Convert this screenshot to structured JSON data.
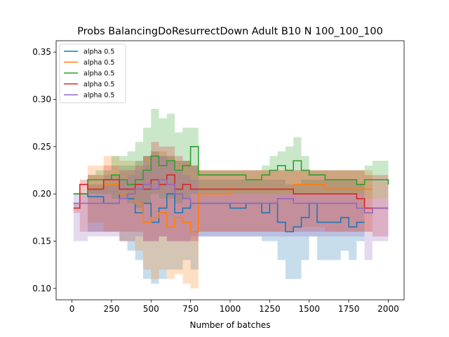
{
  "chart_data": {
    "type": "line",
    "title": "Probs BalancingDoResurrectDown Adult B10 N 100_100_100",
    "xlabel": "Number of batches",
    "ylabel": "",
    "xlim": [
      -100,
      2100
    ],
    "ylim": [
      0.088,
      0.362
    ],
    "x_ticks": [
      0,
      250,
      500,
      750,
      1000,
      1250,
      1500,
      1750,
      2000
    ],
    "x_tick_labels": [
      "0",
      "250",
      "500",
      "750",
      "1000",
      "1250",
      "1500",
      "1750",
      "2000"
    ],
    "y_ticks": [
      0.1,
      0.15,
      0.2,
      0.25,
      0.3,
      0.35
    ],
    "y_tick_labels": [
      "0.10",
      "0.15",
      "0.20",
      "0.25",
      "0.30",
      "0.35"
    ],
    "grid": false,
    "legend_placement": "top-left",
    "series": [
      {
        "name": "alpha 0.5",
        "color": "#1f77b4",
        "x": [
          10,
          100,
          200,
          300,
          350,
          400,
          450,
          500,
          550,
          600,
          650,
          700,
          750,
          800,
          1000,
          1100,
          1200,
          1250,
          1300,
          1350,
          1400,
          1450,
          1500,
          1550,
          1600,
          1700,
          1750,
          1800,
          1850
        ],
        "y": [
          0.2,
          0.197,
          0.19,
          0.2,
          0.195,
          0.18,
          0.19,
          0.17,
          0.185,
          0.2,
          0.18,
          0.185,
          0.19,
          0.19,
          0.185,
          0.19,
          0.18,
          0.19,
          0.17,
          0.16,
          0.165,
          0.175,
          0.19,
          0.17,
          0.17,
          0.175,
          0.165,
          0.17,
          0.17
        ],
        "band_lower": [
          0.2,
          0.16,
          0.16,
          0.15,
          0.14,
          0.13,
          0.11,
          0.105,
          0.11,
          0.12,
          0.12,
          0.13,
          0.12,
          0.155,
          0.155,
          0.155,
          0.15,
          0.15,
          0.13,
          0.11,
          0.11,
          0.13,
          0.155,
          0.13,
          0.13,
          0.14,
          0.13,
          0.15,
          0.15
        ],
        "band_upper": [
          0.2,
          0.21,
          0.22,
          0.23,
          0.23,
          0.235,
          0.24,
          0.245,
          0.24,
          0.24,
          0.235,
          0.235,
          0.23,
          0.215,
          0.215,
          0.215,
          0.215,
          0.215,
          0.215,
          0.21,
          0.21,
          0.215,
          0.215,
          0.215,
          0.215,
          0.215,
          0.215,
          0.21,
          0.21
        ]
      },
      {
        "name": "alpha 0.5",
        "color": "#ff7f0e",
        "x": [
          10,
          100,
          200,
          300,
          400,
          450,
          500,
          550,
          600,
          650,
          700,
          750,
          800,
          1000,
          1200,
          1400,
          1600,
          1800,
          1900
        ],
        "y": [
          0.2,
          0.205,
          0.21,
          0.2,
          0.19,
          0.17,
          0.175,
          0.18,
          0.165,
          0.175,
          0.17,
          0.16,
          0.2,
          0.205,
          0.205,
          0.21,
          0.205,
          0.205,
          0.205
        ],
        "band_lower": [
          0.2,
          0.17,
          0.16,
          0.15,
          0.14,
          0.12,
          0.11,
          0.12,
          0.11,
          0.115,
          0.105,
          0.1,
          0.16,
          0.16,
          0.16,
          0.165,
          0.16,
          0.16,
          0.16
        ],
        "band_upper": [
          0.2,
          0.23,
          0.24,
          0.235,
          0.235,
          0.24,
          0.245,
          0.245,
          0.24,
          0.235,
          0.235,
          0.23,
          0.225,
          0.225,
          0.225,
          0.225,
          0.225,
          0.225,
          0.225
        ]
      },
      {
        "name": "alpha 0.5",
        "color": "#2ca02c",
        "x": [
          10,
          100,
          150,
          250,
          300,
          350,
          400,
          450,
          500,
          550,
          600,
          650,
          700,
          750,
          800,
          900,
          1000,
          1100,
          1200,
          1250,
          1300,
          1350,
          1400,
          1450,
          1500,
          1600,
          1700,
          1800,
          1850,
          1900,
          2000
        ],
        "y": [
          0.2,
          0.215,
          0.215,
          0.22,
          0.215,
          0.21,
          0.215,
          0.225,
          0.24,
          0.23,
          0.235,
          0.225,
          0.23,
          0.25,
          0.22,
          0.22,
          0.22,
          0.215,
          0.22,
          0.225,
          0.23,
          0.225,
          0.235,
          0.225,
          0.22,
          0.215,
          0.215,
          0.21,
          0.215,
          0.215,
          0.21
        ],
        "band_lower": [
          0.2,
          0.2,
          0.2,
          0.195,
          0.195,
          0.19,
          0.185,
          0.19,
          0.2,
          0.195,
          0.195,
          0.19,
          0.195,
          0.2,
          0.2,
          0.2,
          0.2,
          0.2,
          0.2,
          0.2,
          0.2,
          0.2,
          0.2,
          0.2,
          0.2,
          0.2,
          0.2,
          0.2,
          0.195,
          0.195,
          0.2
        ],
        "band_upper": [
          0.2,
          0.22,
          0.225,
          0.24,
          0.24,
          0.245,
          0.255,
          0.27,
          0.29,
          0.28,
          0.285,
          0.265,
          0.27,
          0.27,
          0.225,
          0.225,
          0.225,
          0.225,
          0.23,
          0.24,
          0.245,
          0.25,
          0.26,
          0.24,
          0.225,
          0.225,
          0.225,
          0.225,
          0.23,
          0.235,
          0.22
        ]
      },
      {
        "name": "alpha 0.5",
        "color": "#d62728",
        "x": [
          10,
          50,
          100,
          200,
          300,
          400,
          450,
          500,
          550,
          600,
          650,
          700,
          750,
          800,
          1000,
          1200,
          1400,
          1600,
          1800,
          1850,
          1900,
          2000
        ],
        "y": [
          0.185,
          0.21,
          0.205,
          0.215,
          0.205,
          0.21,
          0.205,
          0.215,
          0.21,
          0.22,
          0.205,
          0.21,
          0.205,
          0.205,
          0.205,
          0.205,
          0.2,
          0.2,
          0.195,
          0.185,
          0.185,
          0.185
        ],
        "band_lower": [
          0.18,
          0.16,
          0.16,
          0.16,
          0.16,
          0.16,
          0.15,
          0.15,
          0.155,
          0.15,
          0.15,
          0.15,
          0.15,
          0.16,
          0.16,
          0.16,
          0.16,
          0.16,
          0.16,
          0.16,
          0.155,
          0.155
        ],
        "band_upper": [
          0.19,
          0.215,
          0.22,
          0.23,
          0.225,
          0.23,
          0.24,
          0.255,
          0.25,
          0.25,
          0.24,
          0.235,
          0.23,
          0.225,
          0.225,
          0.225,
          0.225,
          0.225,
          0.225,
          0.22,
          0.22,
          0.215
        ]
      },
      {
        "name": "alpha 0.5",
        "color": "#9467bd",
        "x": [
          10,
          100,
          200,
          300,
          350,
          400,
          450,
          500,
          550,
          600,
          650,
          700,
          750,
          800,
          1000,
          1200,
          1300,
          1400,
          1500,
          1600,
          1700,
          1800,
          1850,
          1900,
          2000
        ],
        "y": [
          0.19,
          0.19,
          0.19,
          0.195,
          0.2,
          0.205,
          0.21,
          0.205,
          0.215,
          0.21,
          0.2,
          0.195,
          0.19,
          0.19,
          0.19,
          0.19,
          0.195,
          0.19,
          0.19,
          0.19,
          0.19,
          0.185,
          0.18,
          0.185,
          0.185
        ],
        "band_lower": [
          0.15,
          0.155,
          0.155,
          0.15,
          0.15,
          0.155,
          0.15,
          0.15,
          0.155,
          0.15,
          0.15,
          0.15,
          0.155,
          0.155,
          0.155,
          0.155,
          0.155,
          0.155,
          0.155,
          0.155,
          0.155,
          0.155,
          0.13,
          0.15,
          0.15
        ],
        "band_upper": [
          0.2,
          0.205,
          0.21,
          0.215,
          0.22,
          0.225,
          0.23,
          0.24,
          0.24,
          0.235,
          0.225,
          0.22,
          0.215,
          0.2,
          0.2,
          0.2,
          0.2,
          0.2,
          0.2,
          0.2,
          0.2,
          0.2,
          0.195,
          0.195,
          0.195
        ]
      }
    ]
  }
}
